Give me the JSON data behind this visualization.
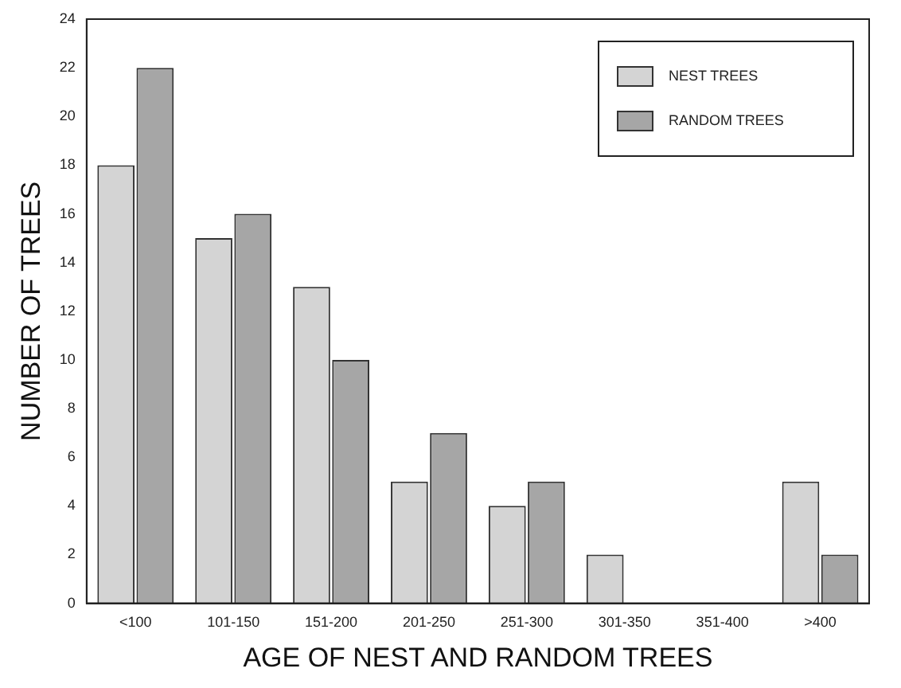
{
  "chart_data": {
    "type": "bar",
    "xlabel": "AGE OF NEST AND RANDOM TREES",
    "ylabel": "NUMBER OF TREES",
    "categories": [
      "<100",
      "101-150",
      "151-200",
      "201-250",
      "251-300",
      "301-350",
      "351-400",
      ">400"
    ],
    "series": [
      {
        "name": "NEST TREES",
        "color": "#d4d4d4",
        "values": [
          18,
          15,
          13,
          5,
          4,
          2,
          0,
          5
        ]
      },
      {
        "name": "RANDOM TREES",
        "color": "#a6a6a6",
        "values": [
          22,
          16,
          10,
          7,
          5,
          0,
          0,
          2
        ]
      }
    ],
    "ylim": [
      0,
      24
    ],
    "yticks": [
      0,
      2,
      4,
      6,
      8,
      10,
      12,
      14,
      16,
      18,
      20,
      22,
      24
    ],
    "grid": false,
    "legend": "top right"
  }
}
